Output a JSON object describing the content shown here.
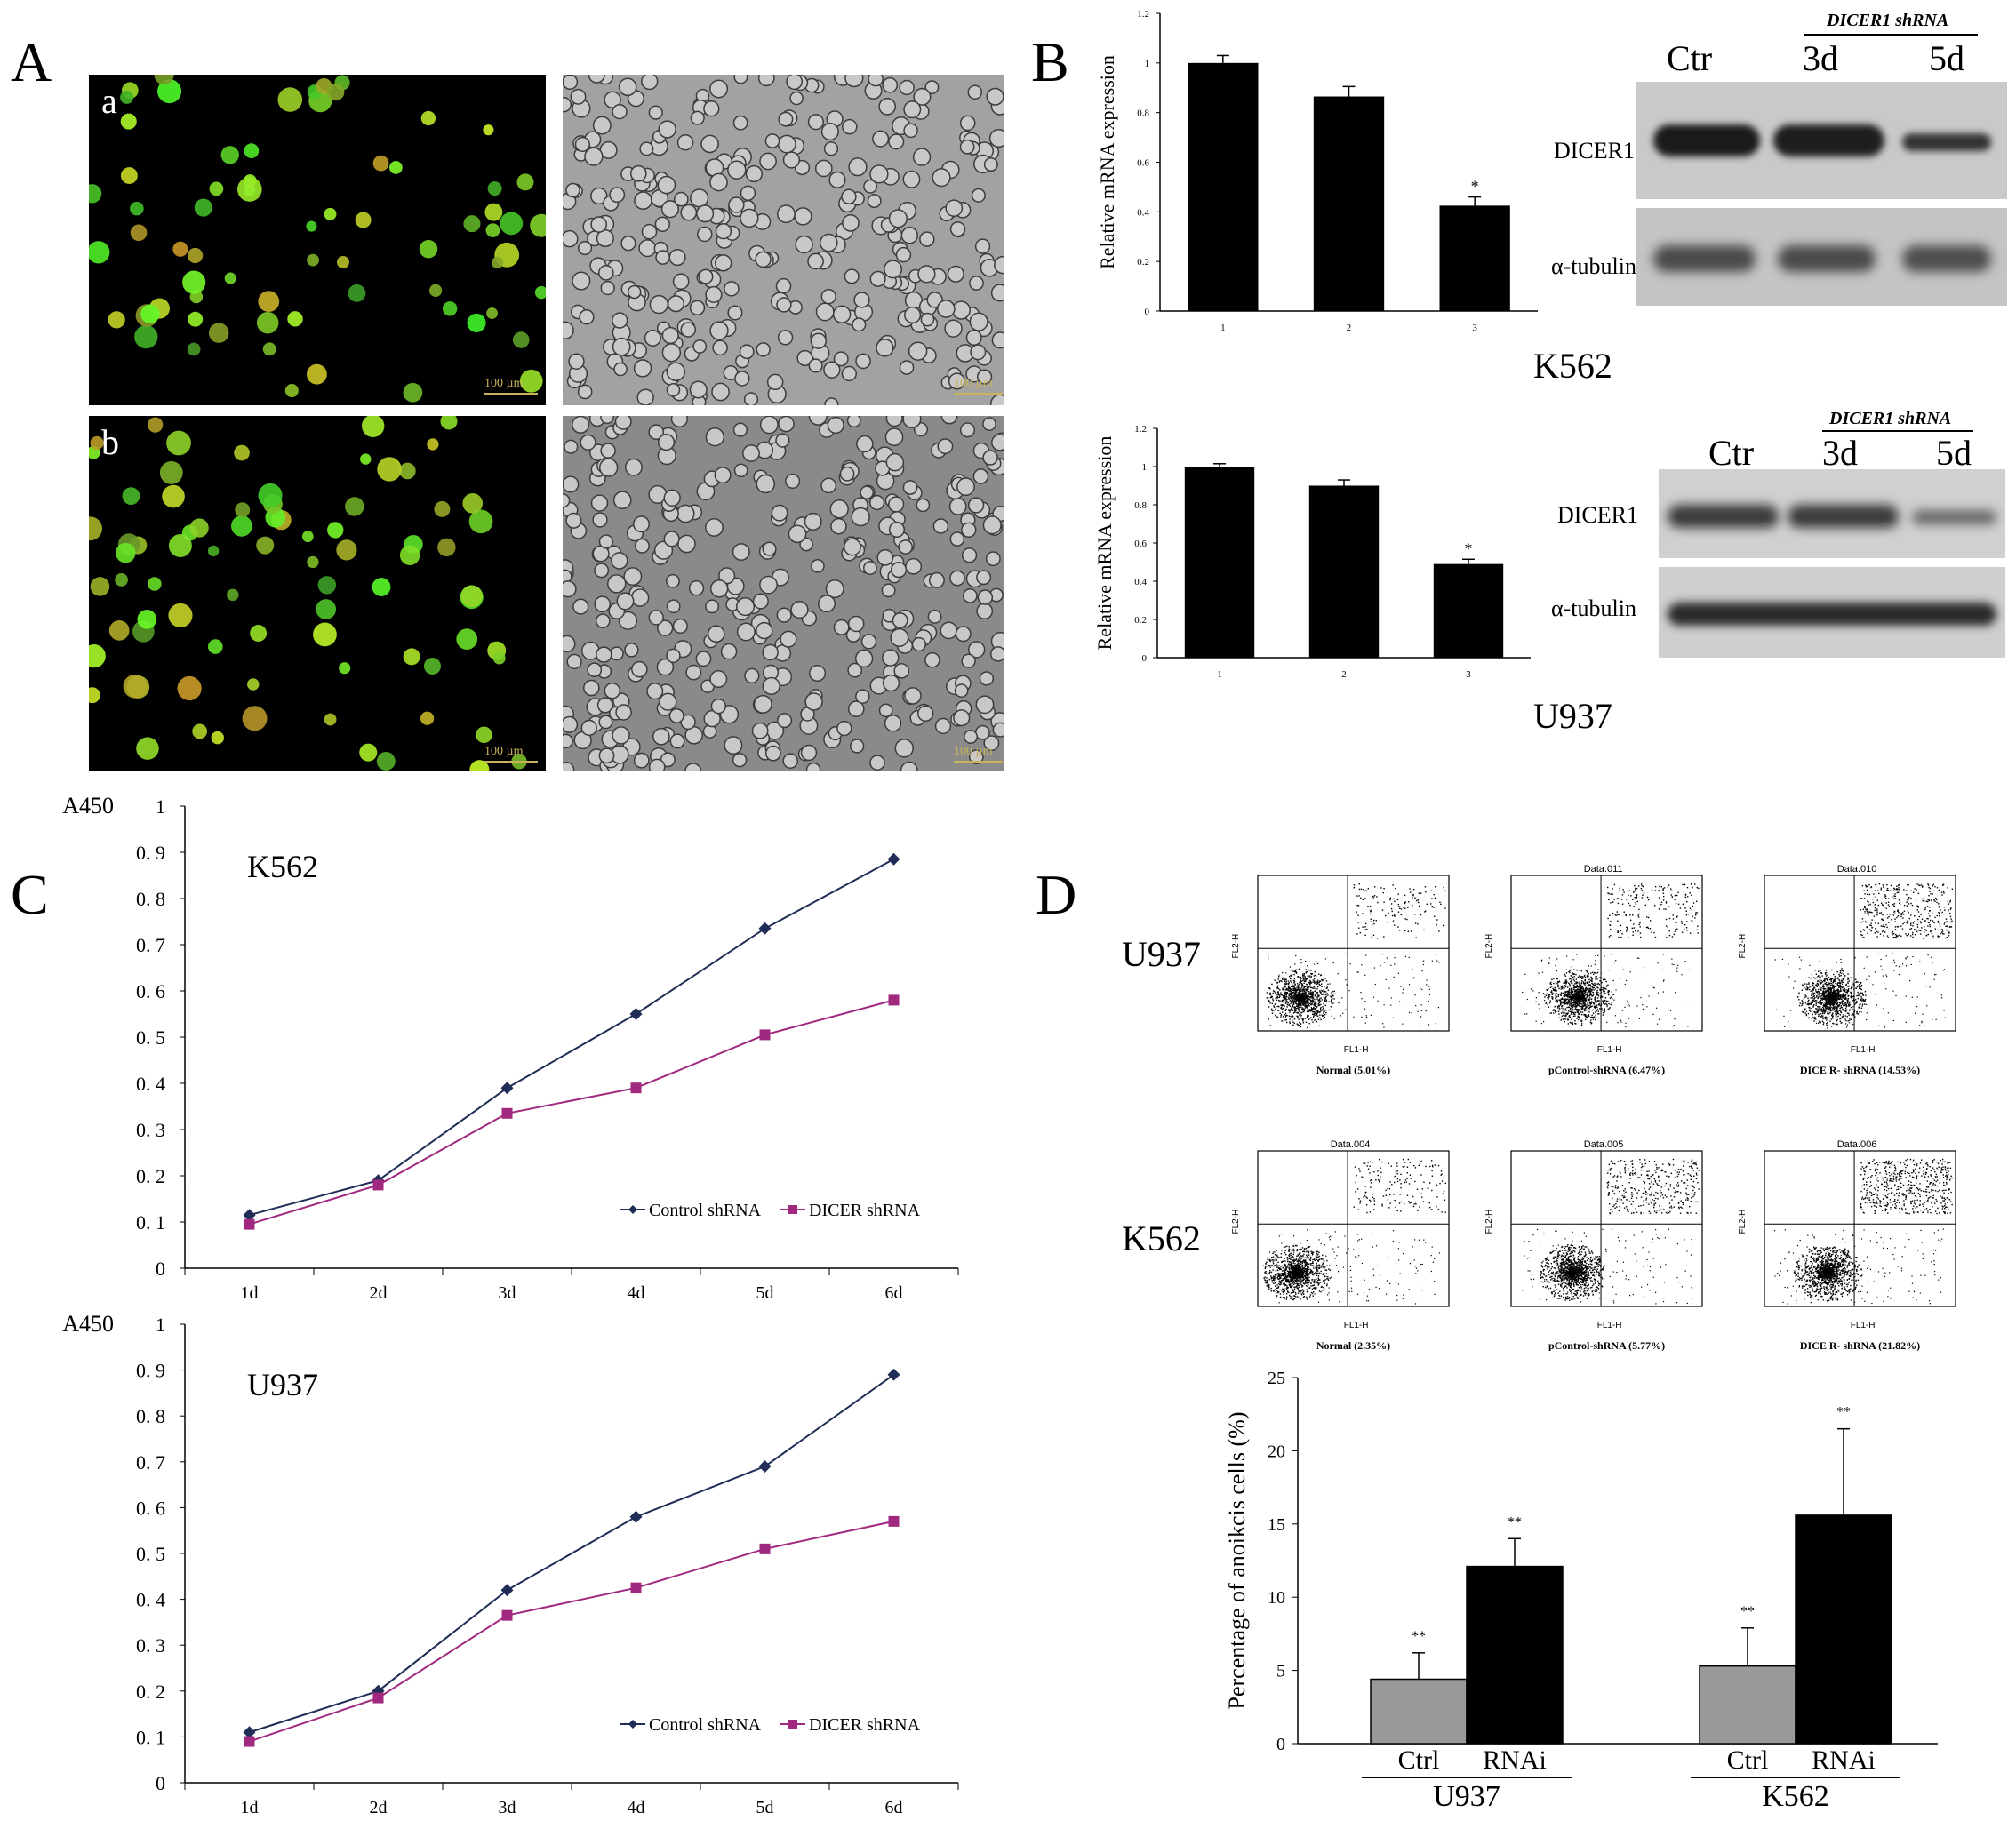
{
  "panels": {
    "A": {
      "letter": "A",
      "rows": [
        {
          "label": "a",
          "scale": "100 µm",
          "scale_bright": "100 µm"
        },
        {
          "label": "b",
          "scale": "100 µm",
          "scale_bright": "100 µm"
        }
      ]
    },
    "B": {
      "letter": "B",
      "k562": {
        "cell_line": "K562",
        "blot": {
          "shrna_title": "DICER1 shRNA",
          "lanes": [
            "Ctr",
            "3d",
            "5d"
          ],
          "rows": [
            "DICER1",
            "α-tubulin"
          ]
        }
      },
      "u937": {
        "cell_line": "U937",
        "blot": {
          "shrna_title": "DICER1 shRNA",
          "lanes": [
            "Ctr",
            "3d",
            "5d"
          ],
          "rows": [
            "DICER1",
            "α-tubulin"
          ]
        }
      }
    },
    "C": {
      "letter": "C"
    },
    "D": {
      "letter": "D",
      "rows": [
        {
          "cell_line": "U937",
          "plots": [
            {
              "title": "",
              "caption": "Normal (5.01%)"
            },
            {
              "title": "Data.011",
              "caption": "pControl-shRNA (6.47%)"
            },
            {
              "title": "Data.010",
              "caption": "DICE R- shRNA (14.53%)"
            }
          ]
        },
        {
          "cell_line": "K562",
          "plots": [
            {
              "title": "Data.004",
              "caption": "Normal (2.35%)"
            },
            {
              "title": "Data.005",
              "caption": "pControl-shRNA (5.77%)"
            },
            {
              "title": "Data.006",
              "caption": "DICE R- shRNA (21.82%)"
            }
          ]
        }
      ],
      "flow_axis": {
        "x_label": "FL1-H",
        "y_label": "FL2-H"
      }
    }
  },
  "chart_data": [
    {
      "id": "B-K562-bar",
      "type": "bar",
      "categories": [
        "1",
        "2",
        "3"
      ],
      "values": [
        1.0,
        0.865,
        0.425
      ],
      "errors": [
        0.03,
        0.04,
        0.035
      ],
      "annotations": [
        "",
        "",
        "*"
      ],
      "ylabel": "Relative mRNA expression",
      "ylim": [
        0,
        1.2
      ],
      "yticks": [
        "0",
        "0.2",
        "0.4",
        "0.6",
        "0.8",
        "1",
        "1.2"
      ],
      "bar_color": "#000000"
    },
    {
      "id": "B-U937-bar",
      "type": "bar",
      "categories": [
        "1",
        "2",
        "3"
      ],
      "values": [
        1.0,
        0.9,
        0.49
      ],
      "errors": [
        0.015,
        0.03,
        0.025
      ],
      "annotations": [
        "",
        "",
        "*"
      ],
      "ylabel": "Relative mRNA expression",
      "ylim": [
        0,
        1.2
      ],
      "yticks": [
        "0",
        "0.2",
        "0.4",
        "0.6",
        "0.8",
        "1",
        "1.2"
      ],
      "bar_color": "#000000"
    },
    {
      "id": "C-K562-line",
      "type": "line",
      "title": "K562",
      "ylabel": "A450",
      "categories": [
        "1d",
        "2d",
        "3d",
        "4d",
        "5d",
        "6d"
      ],
      "ylim": [
        0,
        1
      ],
      "yticks": [
        "0",
        "0. 1",
        "0. 2",
        "0. 3",
        "0. 4",
        "0. 5",
        "0. 6",
        "0. 7",
        "0. 8",
        "0. 9",
        "1"
      ],
      "legend_position": "bottom-right",
      "series": [
        {
          "name": "Control shRNA",
          "color": "#1f2d57",
          "marker": "diamond",
          "values": [
            0.115,
            0.19,
            0.39,
            0.55,
            0.735,
            0.885
          ]
        },
        {
          "name": "DICER shRNA",
          "color": "#a0287f",
          "marker": "square",
          "values": [
            0.095,
            0.18,
            0.335,
            0.39,
            0.505,
            0.58
          ]
        }
      ]
    },
    {
      "id": "C-U937-line",
      "type": "line",
      "title": "U937",
      "ylabel": "A450",
      "categories": [
        "1d",
        "2d",
        "3d",
        "4d",
        "5d",
        "6d"
      ],
      "ylim": [
        0,
        1
      ],
      "yticks": [
        "0",
        "0. 1",
        "0. 2",
        "0. 3",
        "0. 4",
        "0. 5",
        "0. 6",
        "0. 7",
        "0. 8",
        "0. 9",
        "1"
      ],
      "legend_position": "bottom-right",
      "series": [
        {
          "name": "Control shRNA",
          "color": "#1f2d57",
          "marker": "diamond",
          "values": [
            0.11,
            0.2,
            0.42,
            0.58,
            0.69,
            0.89
          ]
        },
        {
          "name": "DICER shRNA",
          "color": "#a0287f",
          "marker": "square",
          "values": [
            0.09,
            0.185,
            0.365,
            0.425,
            0.51,
            0.57
          ]
        }
      ]
    },
    {
      "id": "D-bar",
      "type": "bar",
      "ylabel": "Percentage of anoikcis cells (%)",
      "ylim": [
        0,
        25
      ],
      "yticks": [
        "0",
        "5",
        "10",
        "15",
        "20",
        "25"
      ],
      "groups": [
        "U937",
        "K562"
      ],
      "categories": [
        "Ctrl",
        "RNAi"
      ],
      "series": [
        {
          "name": "Ctrl",
          "color": "#999999",
          "values": [
            4.4,
            5.3
          ],
          "errors": [
            1.8,
            2.6
          ]
        },
        {
          "name": "RNAi",
          "color": "#000000",
          "values": [
            12.1,
            15.6
          ],
          "errors": [
            1.9,
            5.9
          ]
        }
      ],
      "annotations": [
        "**",
        "**",
        "**",
        "**"
      ]
    }
  ]
}
